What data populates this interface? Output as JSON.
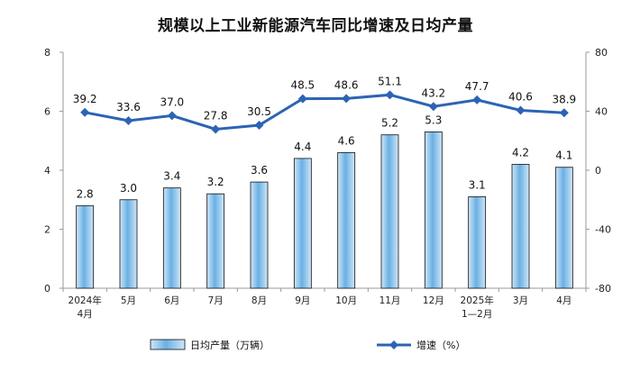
{
  "chart_data": {
    "type": "bar",
    "title": "规模以上工业新能源汽车同比增速及日均产量",
    "categories": [
      [
        "2024年",
        "4月"
      ],
      [
        "5月"
      ],
      [
        "6月"
      ],
      [
        "7月"
      ],
      [
        "8月"
      ],
      [
        "9月"
      ],
      [
        "10月"
      ],
      [
        "11月"
      ],
      [
        "12月"
      ],
      [
        "2025年",
        "1—2月"
      ],
      [
        "3月"
      ],
      [
        "4月"
      ]
    ],
    "series": [
      {
        "name": "日均产量（万辆）",
        "type": "bar",
        "axis": "left",
        "values": [
          2.8,
          3.0,
          3.4,
          3.2,
          3.6,
          4.4,
          4.6,
          5.2,
          5.3,
          3.1,
          4.2,
          4.1
        ],
        "labels": [
          "2.8",
          "3.0",
          "3.4",
          "3.2",
          "3.6",
          "4.4",
          "4.6",
          "5.2",
          "5.3",
          "3.1",
          "4.2",
          "4.1"
        ]
      },
      {
        "name": "增速（%）",
        "type": "line",
        "axis": "right",
        "values": [
          39.2,
          33.6,
          37.0,
          27.8,
          30.5,
          48.5,
          48.6,
          51.1,
          43.2,
          47.7,
          40.6,
          38.9
        ],
        "labels": [
          "39.2",
          "33.6",
          "37.0",
          "27.8",
          "30.5",
          "48.5",
          "48.6",
          "51.1",
          "43.2",
          "47.7",
          "40.6",
          "38.9"
        ]
      }
    ],
    "y_left": {
      "lim": [
        0,
        8
      ],
      "ticks": [
        "0",
        "2",
        "4",
        "6",
        "8"
      ]
    },
    "y_right": {
      "lim": [
        -80,
        80
      ],
      "ticks": [
        "-80",
        "-40",
        "0",
        "40",
        "80"
      ]
    },
    "grid": false,
    "legend_position": "bottom",
    "colors": {
      "bar_fill_light": "#cfe6f7",
      "bar_fill_dark": "#6ab0e4",
      "bar_stroke": "#111111",
      "line": "#2c64b4",
      "axis": "#999999"
    }
  }
}
